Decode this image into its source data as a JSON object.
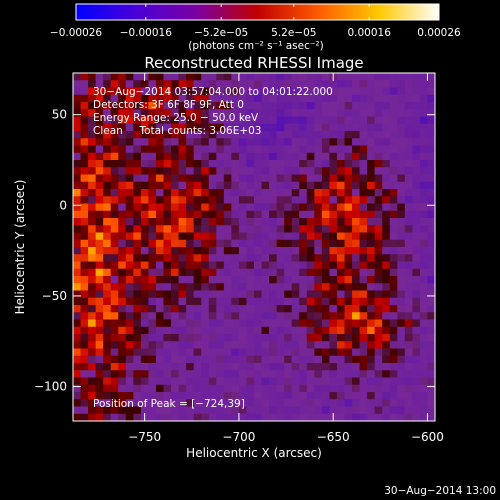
{
  "chart_data": {
    "type": "heatmap",
    "title": "Reconstructed RHESSI Image",
    "xlabel": "Heliocentric X (arcsec)",
    "ylabel": "Heliocentric Y (arcsec)",
    "xlim": [
      -788,
      -596
    ],
    "ylim": [
      -119,
      73
    ],
    "x_ticks": [
      -750,
      -700,
      -650,
      -600
    ],
    "x_tick_labels": [
      "−750",
      "−700",
      "−650",
      "−600"
    ],
    "y_ticks": [
      -100,
      -50,
      0,
      50
    ],
    "y_tick_labels": [
      "−100",
      "−50",
      "0",
      "50"
    ],
    "colorbar": {
      "min": -0.00026,
      "max": 0.00026,
      "tick_values": [
        -0.00026,
        -0.00016,
        -5.2e-05,
        5.2e-05,
        0.00016,
        0.00026
      ],
      "tick_labels": [
        "−0.00026",
        "−0.00016",
        "−5.2e−05",
        "5.2e−05",
        "0.00016",
        "0.00026"
      ],
      "units_label": "(photons cm⁻² s⁻¹ asec⁻²)",
      "colors": [
        "#0000ff",
        "#4a00d8",
        "#7a00a0",
        "#c00000",
        "#ff5a00",
        "#ffc800",
        "#ffffff"
      ]
    },
    "annotations": [
      "30−Aug−2014 03:57:04.000 to 04:01:22.000",
      "Detectors: 3F 6F 8F 9F, Att 0",
      "Energy Range: 25.0 − 50.0 keV",
      "Clean     Total counts: 3.06E+03"
    ],
    "peak_label": "Position of Peak = [−724,39]",
    "peak_position": [
      -724,
      39
    ],
    "timestamp": "30−Aug−2014 13:00",
    "grid": false
  }
}
